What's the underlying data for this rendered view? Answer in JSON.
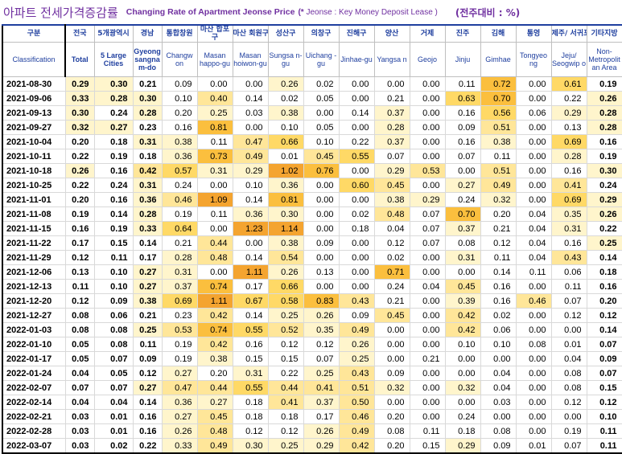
{
  "title": {
    "korean": "아파트 전세가격증감률",
    "english": "Changing Rate of Apartment Jeonse Price",
    "note_mark": "(*",
    "note_text": "Jeonse : Key Money Deposit Lease )",
    "unit": "(전주대비 : %)"
  },
  "columns": [
    {
      "ko": "구분",
      "en": "Classification"
    },
    {
      "ko": "전국",
      "en": "Total"
    },
    {
      "ko": "5개광역시",
      "en": "5 Large Cities"
    },
    {
      "ko": "경남",
      "en": "Gyeong sangna m-do"
    },
    {
      "ko": "통합창원",
      "en": "Changw on"
    },
    {
      "ko": "마산 합포구",
      "en": "Masan happo-gu"
    },
    {
      "ko": "마산 회원구",
      "en": "Masan hoiwon-gu"
    },
    {
      "ko": "성산구",
      "en": "Sungsa n-gu"
    },
    {
      "ko": "의창구",
      "en": "Uichang -gu"
    },
    {
      "ko": "진해구",
      "en": "Jinhae-gu"
    },
    {
      "ko": "양산",
      "en": "Yangsa n"
    },
    {
      "ko": "거제",
      "en": "Geojo"
    },
    {
      "ko": "진주",
      "en": "Jinju"
    },
    {
      "ko": "김해",
      "en": "Gimhae"
    },
    {
      "ko": "통영",
      "en": "Tongyeo ng"
    },
    {
      "ko": "제주/ 서귀포",
      "en": "Jeju/ Seogwip o"
    },
    {
      "ko": "기타지방",
      "en": "Non-Metropolit an Area"
    }
  ],
  "rows": [
    {
      "date": "2021-08-30",
      "values": [
        "0.29",
        "0.30",
        "0.21",
        "0.09",
        "0.00",
        "0.00",
        "0.26",
        "0.02",
        "0.00",
        "0.00",
        "0.00",
        "0.11",
        "0.72",
        "0.00",
        "0.61",
        "0.19"
      ]
    },
    {
      "date": "2021-09-06",
      "values": [
        "0.33",
        "0.28",
        "0.30",
        "0.10",
        "0.40",
        "0.14",
        "0.02",
        "0.05",
        "0.00",
        "0.21",
        "0.00",
        "0.63",
        "0.70",
        "0.00",
        "0.22",
        "0.26"
      ]
    },
    {
      "date": "2021-09-13",
      "values": [
        "0.30",
        "0.24",
        "0.28",
        "0.20",
        "0.25",
        "0.03",
        "0.38",
        "0.00",
        "0.14",
        "0.37",
        "0.00",
        "0.16",
        "0.56",
        "0.06",
        "0.29",
        "0.28"
      ]
    },
    {
      "date": "2021-09-27",
      "values": [
        "0.32",
        "0.27",
        "0.23",
        "0.16",
        "0.81",
        "0.00",
        "0.10",
        "0.05",
        "0.00",
        "0.28",
        "0.00",
        "0.09",
        "0.51",
        "0.00",
        "0.13",
        "0.28"
      ]
    },
    {
      "date": "2021-10-04",
      "values": [
        "0.20",
        "0.18",
        "0.31",
        "0.38",
        "0.11",
        "0.47",
        "0.66",
        "0.10",
        "0.22",
        "0.37",
        "0.00",
        "0.16",
        "0.38",
        "0.00",
        "0.69",
        "0.16"
      ]
    },
    {
      "date": "2021-10-11",
      "values": [
        "0.22",
        "0.19",
        "0.18",
        "0.36",
        "0.73",
        "0.49",
        "0.01",
        "0.45",
        "0.55",
        "0.07",
        "0.00",
        "0.07",
        "0.11",
        "0.00",
        "0.28",
        "0.19"
      ]
    },
    {
      "date": "2021-10-18",
      "values": [
        "0.26",
        "0.16",
        "0.42",
        "0.57",
        "0.31",
        "0.29",
        "1.02",
        "0.76",
        "0.00",
        "0.29",
        "0.53",
        "0.00",
        "0.51",
        "0.00",
        "0.16",
        "0.30"
      ]
    },
    {
      "date": "2021-10-25",
      "values": [
        "0.22",
        "0.24",
        "0.31",
        "0.24",
        "0.00",
        "0.10",
        "0.36",
        "0.00",
        "0.60",
        "0.45",
        "0.00",
        "0.27",
        "0.49",
        "0.00",
        "0.41",
        "0.24"
      ]
    },
    {
      "date": "2021-11-01",
      "values": [
        "0.20",
        "0.16",
        "0.36",
        "0.46",
        "1.09",
        "0.14",
        "0.81",
        "0.00",
        "0.00",
        "0.38",
        "0.29",
        "0.24",
        "0.32",
        "0.00",
        "0.69",
        "0.29"
      ]
    },
    {
      "date": "2021-11-08",
      "values": [
        "0.19",
        "0.14",
        "0.28",
        "0.19",
        "0.11",
        "0.36",
        "0.30",
        "0.00",
        "0.02",
        "0.48",
        "0.07",
        "0.70",
        "0.20",
        "0.04",
        "0.35",
        "0.26"
      ]
    },
    {
      "date": "2021-11-15",
      "values": [
        "0.16",
        "0.19",
        "0.33",
        "0.64",
        "0.00",
        "1.23",
        "1.14",
        "0.00",
        "0.18",
        "0.04",
        "0.07",
        "0.37",
        "0.21",
        "0.04",
        "0.31",
        "0.22"
      ]
    },
    {
      "date": "2021-11-22",
      "values": [
        "0.17",
        "0.15",
        "0.14",
        "0.21",
        "0.44",
        "0.00",
        "0.38",
        "0.09",
        "0.00",
        "0.12",
        "0.07",
        "0.08",
        "0.12",
        "0.04",
        "0.16",
        "0.25"
      ]
    },
    {
      "date": "2021-11-29",
      "values": [
        "0.12",
        "0.11",
        "0.17",
        "0.28",
        "0.48",
        "0.14",
        "0.54",
        "0.00",
        "0.00",
        "0.02",
        "0.00",
        "0.31",
        "0.11",
        "0.04",
        "0.43",
        "0.14"
      ]
    },
    {
      "date": "2021-12-06",
      "values": [
        "0.13",
        "0.10",
        "0.27",
        "0.31",
        "0.00",
        "1.11",
        "0.26",
        "0.13",
        "0.00",
        "0.71",
        "0.00",
        "0.00",
        "0.14",
        "0.11",
        "0.06",
        "0.18"
      ]
    },
    {
      "date": "2021-12-13",
      "values": [
        "0.11",
        "0.10",
        "0.27",
        "0.37",
        "0.74",
        "0.17",
        "0.66",
        "0.00",
        "0.00",
        "0.24",
        "0.04",
        "0.45",
        "0.16",
        "0.00",
        "0.11",
        "0.16"
      ]
    },
    {
      "date": "2021-12-20",
      "values": [
        "0.12",
        "0.09",
        "0.38",
        "0.69",
        "1.11",
        "0.67",
        "0.58",
        "0.83",
        "0.43",
        "0.21",
        "0.00",
        "0.39",
        "0.16",
        "0.46",
        "0.07",
        "0.20"
      ]
    },
    {
      "date": "2021-12-27",
      "values": [
        "0.08",
        "0.06",
        "0.21",
        "0.23",
        "0.42",
        "0.14",
        "0.25",
        "0.26",
        "0.09",
        "0.45",
        "0.00",
        "0.42",
        "0.02",
        "0.00",
        "0.12",
        "0.12"
      ]
    },
    {
      "date": "2022-01-03",
      "values": [
        "0.08",
        "0.08",
        "0.25",
        "0.53",
        "0.74",
        "0.55",
        "0.52",
        "0.35",
        "0.49",
        "0.00",
        "0.00",
        "0.42",
        "0.06",
        "0.00",
        "0.00",
        "0.14"
      ]
    },
    {
      "date": "2022-01-10",
      "values": [
        "0.05",
        "0.08",
        "0.11",
        "0.19",
        "0.42",
        "0.16",
        "0.12",
        "0.12",
        "0.26",
        "0.00",
        "0.00",
        "0.10",
        "0.10",
        "0.08",
        "0.01",
        "0.07"
      ]
    },
    {
      "date": "2022-01-17",
      "values": [
        "0.05",
        "0.07",
        "0.09",
        "0.19",
        "0.38",
        "0.15",
        "0.15",
        "0.07",
        "0.25",
        "0.00",
        "0.21",
        "0.00",
        "0.00",
        "0.00",
        "0.04",
        "0.09"
      ]
    },
    {
      "date": "2022-01-24",
      "values": [
        "0.04",
        "0.05",
        "0.12",
        "0.27",
        "0.20",
        "0.31",
        "0.22",
        "0.25",
        "0.43",
        "0.09",
        "0.00",
        "0.00",
        "0.04",
        "0.00",
        "0.08",
        "0.07"
      ]
    },
    {
      "date": "2022-02-07",
      "values": [
        "0.07",
        "0.07",
        "0.27",
        "0.47",
        "0.44",
        "0.55",
        "0.44",
        "0.41",
        "0.51",
        "0.32",
        "0.00",
        "0.32",
        "0.04",
        "0.00",
        "0.08",
        "0.15"
      ]
    },
    {
      "date": "2022-02-14",
      "values": [
        "0.04",
        "0.04",
        "0.14",
        "0.36",
        "0.27",
        "0.18",
        "0.41",
        "0.37",
        "0.50",
        "0.00",
        "0.00",
        "0.00",
        "0.03",
        "0.00",
        "0.12",
        "0.12"
      ]
    },
    {
      "date": "2022-02-21",
      "values": [
        "0.03",
        "0.01",
        "0.16",
        "0.27",
        "0.45",
        "0.18",
        "0.18",
        "0.17",
        "0.46",
        "0.20",
        "0.00",
        "0.24",
        "0.00",
        "0.00",
        "0.00",
        "0.10"
      ]
    },
    {
      "date": "2022-02-28",
      "values": [
        "0.03",
        "0.01",
        "0.16",
        "0.26",
        "0.48",
        "0.12",
        "0.12",
        "0.26",
        "0.49",
        "0.08",
        "0.11",
        "0.18",
        "0.08",
        "0.00",
        "0.19",
        "0.11"
      ]
    },
    {
      "date": "2022-03-07",
      "values": [
        "0.03",
        "0.02",
        "0.22",
        "0.33",
        "0.49",
        "0.30",
        "0.25",
        "0.29",
        "0.42",
        "0.20",
        "0.15",
        "0.29",
        "0.09",
        "0.01",
        "0.07",
        "0.11"
      ]
    }
  ]
}
